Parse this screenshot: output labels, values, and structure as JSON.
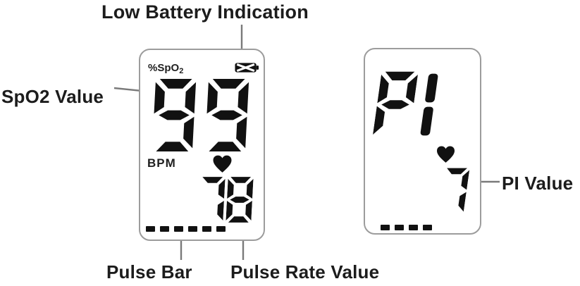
{
  "annotations": {
    "low_battery": "Low Battery Indication",
    "spo2": "SpO2 Value",
    "pulse_bar": "Pulse Bar",
    "pulse_rate": "Pulse Rate Value",
    "pi": "PI Value"
  },
  "left_display": {
    "unit_label": "%SpO",
    "unit_sub": "2",
    "spo2_value": "99",
    "bpm_label": "BPM",
    "pulse_rate_value": "78",
    "pulse_bar_segments": 6,
    "icons": [
      "low-battery-icon",
      "heart-icon"
    ]
  },
  "right_display": {
    "pi_label": "PI",
    "pi_value": "7",
    "pulse_bar_segments": 4,
    "icons": [
      "heart-icon"
    ]
  },
  "colors": {
    "digit": "#111111",
    "panel_border": "#9c9c9c",
    "leader": "#7a7a7a",
    "text": "#1c1c1c"
  }
}
